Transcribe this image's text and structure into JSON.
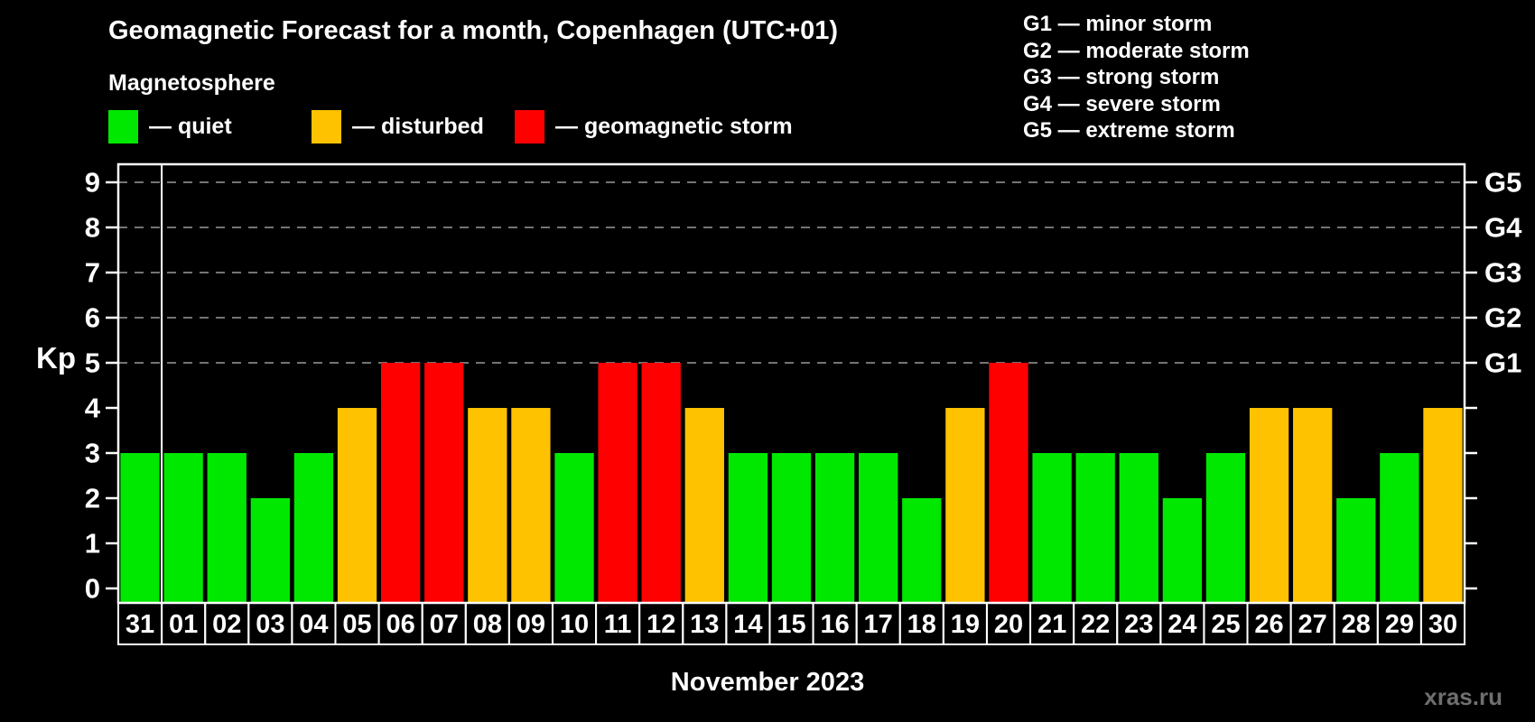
{
  "title": "Geomagnetic Forecast for a month, Copenhagen (UTC+01)",
  "subtitle": "Magnetosphere",
  "legend": {
    "items": [
      {
        "key": "quiet",
        "label": "— quiet",
        "color": "#00e800"
      },
      {
        "key": "disturbed",
        "label": "— disturbed",
        "color": "#ffc200"
      },
      {
        "key": "storm",
        "label": "— geomagnetic storm",
        "color": "#ff0000"
      }
    ]
  },
  "g_scale_legend": {
    "lines": [
      "G1 — minor storm",
      "G2 — moderate storm",
      "G3 — strong storm",
      "G4 — severe storm",
      "G5 — extreme storm"
    ]
  },
  "watermark": "xras.ru",
  "chart_data": {
    "type": "bar",
    "title": "Geomagnetic Forecast for a month, Copenhagen (UTC+01)",
    "xlabel": "November 2023",
    "ylabel": "Kp",
    "ylim": [
      0,
      9
    ],
    "grid": "dashed horizontal at Kp 5-9 only",
    "legend_position": "top-left",
    "categories": [
      "31",
      "01",
      "02",
      "03",
      "04",
      "05",
      "06",
      "07",
      "08",
      "09",
      "10",
      "11",
      "12",
      "13",
      "14",
      "15",
      "16",
      "17",
      "18",
      "19",
      "20",
      "21",
      "22",
      "23",
      "24",
      "25",
      "26",
      "27",
      "28",
      "29",
      "30"
    ],
    "values": [
      3,
      3,
      3,
      2,
      3,
      4,
      5,
      5,
      4,
      4,
      3,
      5,
      5,
      4,
      3,
      3,
      3,
      3,
      2,
      4,
      5,
      3,
      3,
      3,
      2,
      3,
      4,
      4,
      2,
      3,
      4
    ],
    "color_rule": {
      "quiet_max_kp": 3,
      "disturbed_kp": 4,
      "storm_min_kp": 5
    },
    "y_ticks_left": [
      "0",
      "1",
      "2",
      "3",
      "4",
      "5",
      "6",
      "7",
      "8",
      "9"
    ],
    "y_ticks_right": [
      {
        "kp": 5,
        "label": "G1"
      },
      {
        "kp": 6,
        "label": "G2"
      },
      {
        "kp": 7,
        "label": "G3"
      },
      {
        "kp": 8,
        "label": "G4"
      },
      {
        "kp": 9,
        "label": "G5"
      }
    ],
    "gridline_levels": [
      5,
      6,
      7,
      8,
      9
    ],
    "month_divider_after_category": "31",
    "colors": {
      "axis": "#ffffff",
      "gridline": "#9a9a9a",
      "background": "#000000"
    }
  }
}
